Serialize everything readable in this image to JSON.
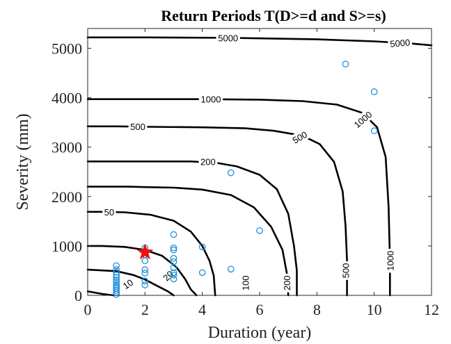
{
  "chart_data": {
    "type": "contour",
    "title": "Return Periods T(D>=d and S>=s)",
    "xlabel": "Duration (year)",
    "ylabel": "Severity (mm)",
    "xlim": [
      0,
      12
    ],
    "ylim": [
      0,
      5400
    ],
    "xticks": [
      0,
      2,
      4,
      6,
      8,
      10,
      12
    ],
    "yticks": [
      0,
      1000,
      2000,
      3000,
      4000,
      5000
    ],
    "grid": false,
    "contours": [
      {
        "level": "10",
        "points": [
          [
            0.0,
            80
          ],
          [
            0.5,
            30
          ],
          [
            0.9,
            0
          ]
        ],
        "label": {
          "text": "10",
          "x": 1.4,
          "y": 230,
          "angle": -35
        }
      },
      {
        "level": "20",
        "points": [
          [
            0.0,
            520
          ],
          [
            1.0,
            490
          ],
          [
            1.6,
            410
          ],
          [
            2.0,
            320
          ],
          [
            2.4,
            200
          ],
          [
            2.8,
            80
          ],
          [
            3.0,
            0
          ]
        ],
        "label": {
          "text": "20",
          "x": 2.8,
          "y": 400,
          "angle": -45
        }
      },
      {
        "level": "50",
        "points": [
          [
            0.0,
            1000
          ],
          [
            0.5,
            1000
          ],
          [
            1.3,
            980
          ],
          [
            2.0,
            920
          ],
          [
            2.6,
            800
          ],
          [
            3.1,
            570
          ],
          [
            3.4,
            330
          ],
          [
            3.6,
            120
          ],
          [
            3.8,
            0
          ]
        ],
        "label": {
          "text": "50",
          "x": 0.75,
          "y": 1690,
          "angle": 0
        }
      },
      {
        "level": "100",
        "points": [
          [
            0.0,
            1690
          ],
          [
            0.4,
            1690
          ],
          [
            1.3,
            1680
          ],
          [
            2.2,
            1630
          ],
          [
            3.0,
            1510
          ],
          [
            3.6,
            1290
          ],
          [
            4.0,
            1000
          ],
          [
            4.25,
            700
          ],
          [
            4.4,
            400
          ],
          [
            4.45,
            0
          ]
        ],
        "label": {
          "text": "100",
          "x": 5.5,
          "y": 250,
          "angle": -90
        }
      },
      {
        "level": "200",
        "points": [
          [
            0.0,
            2200
          ],
          [
            0.5,
            2200
          ],
          [
            1.4,
            2200
          ],
          [
            2.1,
            2190
          ],
          [
            3.0,
            2180
          ],
          [
            4.0,
            2140
          ],
          [
            5.0,
            2030
          ],
          [
            5.8,
            1780
          ],
          [
            6.4,
            1390
          ],
          [
            6.8,
            920
          ],
          [
            6.95,
            450
          ],
          [
            7.0,
            0
          ]
        ],
        "label": {
          "text": "200",
          "x": 6.95,
          "y": 250,
          "angle": -90
        }
      },
      {
        "level": "200",
        "points": [
          [
            0.0,
            2710
          ],
          [
            2.2,
            2710
          ],
          [
            3.6,
            2710
          ],
          [
            4.5,
            2680
          ],
          [
            5.2,
            2610
          ],
          [
            6.0,
            2440
          ],
          [
            6.6,
            2150
          ],
          [
            7.0,
            1650
          ],
          [
            7.2,
            1000
          ],
          [
            7.3,
            500
          ],
          [
            7.3,
            0
          ]
        ],
        "label": {
          "text": "200",
          "x": 4.2,
          "y": 2710,
          "angle": 0
        }
      },
      {
        "level": "500",
        "points": [
          [
            0.0,
            3420
          ],
          [
            1.0,
            3420
          ],
          [
            2.2,
            3410
          ],
          [
            4.0,
            3400
          ],
          [
            5.5,
            3380
          ],
          [
            6.5,
            3330
          ],
          [
            7.5,
            3230
          ],
          [
            8.1,
            3060
          ],
          [
            8.6,
            2700
          ],
          [
            8.9,
            2100
          ],
          [
            9.0,
            1400
          ],
          [
            9.05,
            700
          ],
          [
            9.05,
            0
          ]
        ],
        "label": {
          "text": "500",
          "x": 9.0,
          "y": 500,
          "angle": -90
        }
      },
      {
        "level": "500",
        "points": [
          [
            4.2,
            3420
          ]
        ],
        "label": {
          "text": "500",
          "x": 1.75,
          "y": 3420,
          "angle": 0
        }
      },
      {
        "level": "500",
        "points": [
          [
            7.3,
            3270
          ]
        ],
        "label": {
          "text": "500",
          "x": 7.4,
          "y": 3200,
          "angle": -30
        }
      },
      {
        "level": "1000",
        "points": [
          [
            0.0,
            3970
          ],
          [
            1.0,
            3970
          ],
          [
            4.0,
            3970
          ],
          [
            6.0,
            3960
          ],
          [
            7.5,
            3930
          ],
          [
            8.7,
            3860
          ],
          [
            9.6,
            3690
          ],
          [
            10.1,
            3400
          ],
          [
            10.4,
            2800
          ],
          [
            10.5,
            1800
          ],
          [
            10.55,
            700
          ],
          [
            10.55,
            0
          ]
        ],
        "label": {
          "text": "1000",
          "x": 10.55,
          "y": 700,
          "angle": -90
        }
      },
      {
        "level": "1000",
        "points": [
          [
            0,
            0
          ]
        ],
        "label": {
          "text": "1000",
          "x": 4.3,
          "y": 3970,
          "angle": 0
        }
      },
      {
        "level": "1000",
        "points": [
          [
            0,
            0
          ]
        ],
        "label": {
          "text": "1000",
          "x": 9.6,
          "y": 3560,
          "angle": -40
        }
      },
      {
        "level": "5000",
        "points": [
          [
            0.0,
            5220
          ],
          [
            2.0,
            5220
          ],
          [
            5.0,
            5210
          ],
          [
            8.0,
            5180
          ],
          [
            10.0,
            5140
          ],
          [
            11.2,
            5100
          ],
          [
            12.0,
            5060
          ]
        ],
        "label": {
          "text": "5000",
          "x": 4.9,
          "y": 5210,
          "angle": 0
        }
      },
      {
        "level": "5000",
        "points": [
          [
            0,
            0
          ]
        ],
        "label": {
          "text": "5000",
          "x": 10.9,
          "y": 5110,
          "angle": -5
        }
      }
    ],
    "scatter": {
      "points": [
        [
          1,
          600
        ],
        [
          1,
          520
        ],
        [
          1,
          470
        ],
        [
          1,
          410
        ],
        [
          1,
          360
        ],
        [
          1,
          310
        ],
        [
          1,
          270
        ],
        [
          1,
          220
        ],
        [
          1,
          180
        ],
        [
          1,
          140
        ],
        [
          1,
          100
        ],
        [
          1,
          60
        ],
        [
          1,
          20
        ],
        [
          2,
          960
        ],
        [
          2,
          820
        ],
        [
          2,
          700
        ],
        [
          2,
          520
        ],
        [
          2,
          450
        ],
        [
          2,
          290
        ],
        [
          2,
          210
        ],
        [
          3,
          1230
        ],
        [
          3,
          960
        ],
        [
          3,
          920
        ],
        [
          3,
          750
        ],
        [
          3,
          680
        ],
        [
          3,
          560
        ],
        [
          3,
          460
        ],
        [
          3,
          410
        ],
        [
          3,
          330
        ],
        [
          4,
          980
        ],
        [
          4,
          460
        ],
        [
          5,
          2480
        ],
        [
          5,
          530
        ],
        [
          6,
          1310
        ],
        [
          9,
          4680
        ],
        [
          10,
          4120
        ],
        [
          10,
          3330
        ]
      ]
    },
    "marker": {
      "x": 2,
      "y": 870,
      "shape": "star",
      "color": "#ee1111"
    }
  }
}
